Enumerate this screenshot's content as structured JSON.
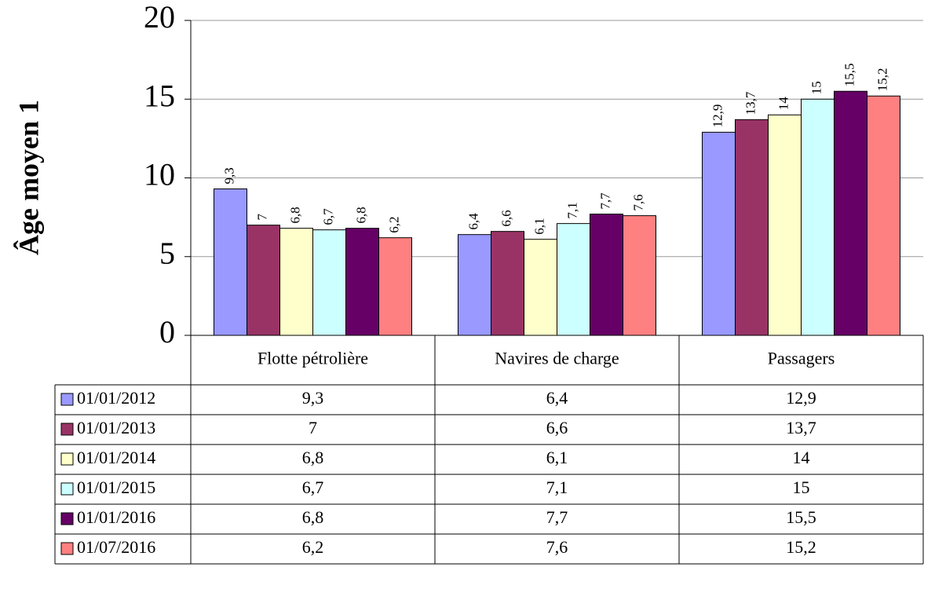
{
  "chart_data": {
    "type": "bar",
    "y_label": "Âge moyen 1",
    "categories": [
      "Flotte pétrolière",
      "Navires de charge",
      "Passagers"
    ],
    "series": [
      {
        "name": "01/01/2012",
        "color": "#9999ff",
        "values": [
          9.3,
          6.4,
          12.9
        ],
        "value_labels": [
          "9,3",
          "6,4",
          "12,9"
        ]
      },
      {
        "name": "01/01/2013",
        "color": "#993366",
        "values": [
          7,
          6.6,
          13.7
        ],
        "value_labels": [
          "7",
          "6,6",
          "13,7"
        ]
      },
      {
        "name": "01/01/2014",
        "color": "#ffffcc",
        "values": [
          6.8,
          6.1,
          14
        ],
        "value_labels": [
          "6,8",
          "6,1",
          "14"
        ]
      },
      {
        "name": "01/01/2015",
        "color": "#ccffff",
        "values": [
          6.7,
          7.1,
          15
        ],
        "value_labels": [
          "6,7",
          "7,1",
          "15"
        ]
      },
      {
        "name": "01/01/2016",
        "color": "#660066",
        "values": [
          6.8,
          7.7,
          15.5
        ],
        "value_labels": [
          "6,8",
          "7,7",
          "15,5"
        ]
      },
      {
        "name": "01/07/2016",
        "color": "#ff8080",
        "values": [
          6.2,
          7.6,
          15.2
        ],
        "value_labels": [
          "6,2",
          "7,6",
          "15,2"
        ]
      }
    ],
    "ylim": [
      0,
      20
    ],
    "yticks": [
      0,
      5,
      10,
      15,
      20
    ],
    "grid": true
  }
}
